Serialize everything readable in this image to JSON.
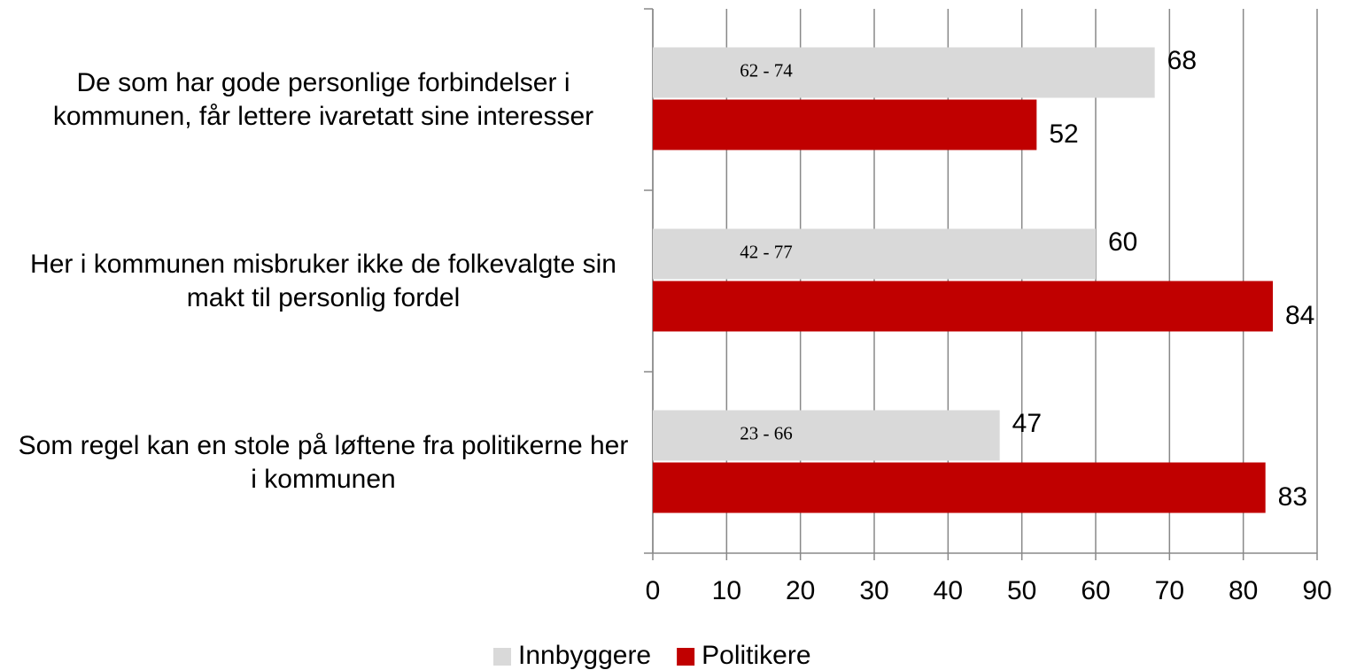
{
  "chart_data": {
    "type": "bar",
    "orientation": "horizontal",
    "categories": [
      "De som har gode personlige forbindelser i kommunen, får lettere ivaretatt sine interesser",
      "Her i kommunen misbruker ikke de folkevalgte sin makt til personlig fordel",
      "Som regel kan en stole på løftene fra politikerne her i kommunen"
    ],
    "series": [
      {
        "name": "Innbyggere",
        "color": "#d9d9d9",
        "values": [
          68,
          60,
          47
        ],
        "range_labels": [
          "62 - 74",
          "42 - 77",
          "23 - 66"
        ]
      },
      {
        "name": "Politikere",
        "color": "#c00000",
        "values": [
          52,
          84,
          83
        ]
      }
    ],
    "xlim": [
      0,
      90
    ],
    "xticks": [
      0,
      10,
      20,
      30,
      40,
      50,
      60,
      70,
      80,
      90
    ],
    "grid": true,
    "legend": "bottom"
  }
}
